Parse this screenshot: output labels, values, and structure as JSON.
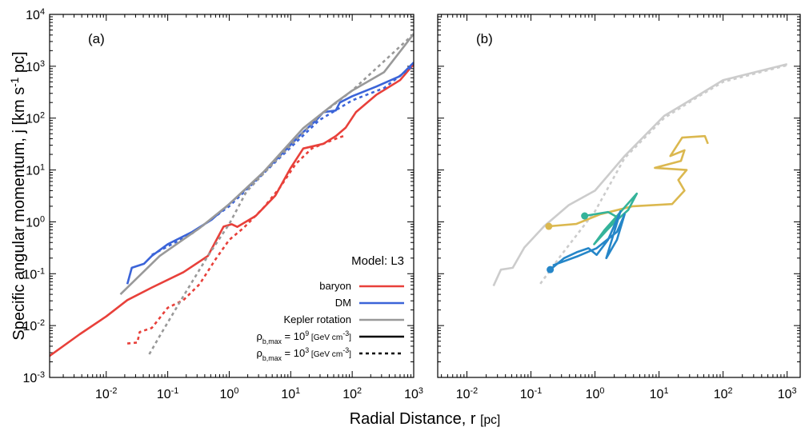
{
  "chart_data": [
    {
      "type": "line",
      "panel_label": "(a)",
      "xscale": "log",
      "yscale": "log",
      "xlabel": [
        "Radial Distance, r ",
        {
          "small": "[pc]"
        }
      ],
      "ylabel": [
        "Specific angular momentum, j [km s",
        {
          "sup": "-1"
        },
        " pc]"
      ],
      "xlim": [
        0.0012,
        1000
      ],
      "ylim": [
        0.001,
        10000
      ],
      "xticks": [
        {
          "value": 0.01,
          "label": [
            "10",
            {
              "sup": "-2"
            }
          ]
        },
        {
          "value": 0.1,
          "label": [
            "10",
            {
              "sup": "-1"
            }
          ]
        },
        {
          "value": 1,
          "label": [
            "10",
            {
              "sup": "0"
            }
          ]
        },
        {
          "value": 10,
          "label": [
            "10",
            {
              "sup": "1"
            }
          ]
        },
        {
          "value": 100,
          "label": [
            "10",
            {
              "sup": "2"
            }
          ]
        },
        {
          "value": 1000,
          "label": [
            "10",
            {
              "sup": "3"
            }
          ]
        }
      ],
      "yticks": [
        {
          "value": 0.001,
          "label": [
            "10",
            {
              "sup": "-3"
            }
          ]
        },
        {
          "value": 0.01,
          "label": [
            "10",
            {
              "sup": "-2"
            }
          ]
        },
        {
          "value": 0.1,
          "label": [
            "10",
            {
              "sup": "-1"
            }
          ]
        },
        {
          "value": 1,
          "label": [
            "10",
            {
              "sup": "0"
            }
          ]
        },
        {
          "value": 10,
          "label": [
            "10",
            {
              "sup": "1"
            }
          ]
        },
        {
          "value": 100,
          "label": [
            "10",
            {
              "sup": "2"
            }
          ]
        },
        {
          "value": 1000,
          "label": [
            "10",
            {
              "sup": "3"
            }
          ]
        },
        {
          "value": 10000,
          "label": [
            "10",
            {
              "sup": "4"
            }
          ]
        }
      ],
      "legend": {
        "title": "Model: L3",
        "corner": "lower right",
        "line_styles": [
          {
            "dashed": false,
            "label": [
              "ρ",
              {
                "sub": "b,max"
              },
              " = 10",
              {
                "sup": "9"
              },
              {
                "small": " [GeV cm"
              },
              {
                "sup": "-3"
              },
              {
                "small": "]"
              }
            ]
          },
          {
            "dashed": true,
            "label": [
              "ρ",
              {
                "sub": "b,max"
              },
              " = 10",
              {
                "sup": "3"
              },
              {
                "small": " [GeV cm"
              },
              {
                "sup": "-3"
              },
              {
                "small": "]"
              }
            ]
          }
        ]
      },
      "series": [
        {
          "name": "baryon",
          "color": "#e8403a",
          "dashed": false,
          "x": [
            0.0012,
            0.0037,
            0.01,
            0.022,
            0.055,
            0.18,
            0.45,
            0.81,
            1.1,
            1.35,
            2.7,
            5.6,
            10,
            16,
            34,
            54,
            78,
            115,
            245,
            600,
            1000
          ],
          "values": [
            0.0026,
            0.0068,
            0.015,
            0.031,
            0.054,
            0.107,
            0.22,
            0.81,
            0.9,
            0.8,
            1.3,
            3.2,
            11,
            26,
            32,
            45,
            65,
            130,
            280,
            540,
            1100
          ]
        },
        {
          "color": "#e8403a",
          "dashed": true,
          "x": [
            0.022,
            0.032,
            0.035,
            0.055,
            0.1,
            0.18,
            0.33,
            0.6,
            1,
            1.7,
            3.6,
            6.6,
            12,
            22,
            54,
            72
          ],
          "values": [
            0.0045,
            0.0047,
            0.0075,
            0.009,
            0.022,
            0.031,
            0.063,
            0.19,
            0.45,
            0.76,
            1.86,
            4.5,
            13,
            26,
            40,
            45
          ]
        },
        {
          "name": "DM",
          "color": "#3b64d8",
          "dashed": false,
          "x": [
            0.022,
            0.026,
            0.041,
            0.055,
            0.1,
            0.25,
            0.52,
            1,
            2.7,
            6.6,
            16,
            26,
            34,
            54,
            63,
            100,
            245,
            600,
            1000
          ],
          "values": [
            0.063,
            0.13,
            0.155,
            0.22,
            0.37,
            0.64,
            1.1,
            2.2,
            6.4,
            18.6,
            54,
            91,
            130,
            140,
            200,
            265,
            405,
            645,
            1180
          ]
        },
        {
          "color": "#3b64d8",
          "dashed": true,
          "x": [
            0.055,
            0.25,
            1,
            6.6,
            29,
            100,
            330,
            1000
          ],
          "values": [
            0.23,
            0.6,
            2.0,
            17,
            91,
            220,
            380,
            1050
          ]
        },
        {
          "name": "Kepler rotation",
          "color": "#999999",
          "dashed": false,
          "x": [
            0.017,
            0.074,
            0.33,
            1,
            3.6,
            16,
            54,
            100,
            330,
            1000
          ],
          "values": [
            0.04,
            0.22,
            0.76,
            2.2,
            9.1,
            64,
            200,
            340,
            770,
            4200
          ]
        },
        {
          "color": "#999999",
          "dashed": true,
          "x": [
            0.05,
            0.074,
            0.18,
            0.45,
            1,
            1.9,
            6.6,
            29,
            100,
            1000
          ],
          "values": [
            0.0028,
            0.0063,
            0.037,
            0.22,
            0.91,
            3.8,
            18,
            110,
            340,
            4200
          ]
        }
      ]
    },
    {
      "type": "line",
      "panel_label": "(b)",
      "xscale": "log",
      "yscale": "log",
      "xlim": [
        0.0035,
        1600
      ],
      "ylim": [
        0.001,
        10000
      ],
      "xticks": [
        {
          "value": 0.01,
          "label": [
            "10",
            {
              "sup": "-2"
            }
          ]
        },
        {
          "value": 0.1,
          "label": [
            "10",
            {
              "sup": "-1"
            }
          ]
        },
        {
          "value": 1,
          "label": [
            "10",
            {
              "sup": "0"
            }
          ]
        },
        {
          "value": 10,
          "label": [
            "10",
            {
              "sup": "1"
            }
          ]
        },
        {
          "value": 100,
          "label": [
            "10",
            {
              "sup": "2"
            }
          ]
        },
        {
          "value": 1000,
          "label": [
            "10",
            {
              "sup": "3"
            }
          ]
        }
      ],
      "yticks": [
        0.001,
        0.01,
        0.1,
        1,
        10,
        100,
        1000,
        10000
      ],
      "series": [
        {
          "color": "#cccccc",
          "dashed": false,
          "x": [
            0.026,
            0.034,
            0.052,
            0.079,
            0.16,
            0.39,
            1,
            2.9,
            12,
            39,
            100,
            1000
          ],
          "values": [
            0.058,
            0.12,
            0.13,
            0.32,
            0.82,
            2.1,
            4,
            18.6,
            110,
            265,
            540,
            1100
          ]
        },
        {
          "color": "#cccccc",
          "dashed": true,
          "x": [
            0.14,
            0.29,
            1,
            2.9,
            12,
            39,
            100,
            1000
          ],
          "values": [
            0.064,
            0.22,
            1.6,
            17,
            100,
            250,
            500,
            1050
          ]
        },
        {
          "color": "#dbb84f",
          "dashed": false,
          "start_marker": true,
          "x": [
            0.19,
            0.51,
            1.2,
            3.9,
            16,
            25,
            20,
            27,
            8.6,
            22,
            25,
            15,
            23,
            52,
            58
          ],
          "values": [
            0.82,
            0.91,
            1.4,
            2.0,
            2.2,
            4.0,
            6.4,
            10,
            11,
            15,
            24,
            18.6,
            42,
            45,
            32
          ]
        },
        {
          "color": "#34b39a",
          "dashed": false,
          "start_marker": true,
          "x": [
            0.69,
            1.6,
            2.3,
            0.97,
            1.4,
            4.5,
            3.3,
            1.9,
            1.15
          ],
          "values": [
            1.3,
            1.55,
            1.2,
            0.37,
            0.69,
            3.5,
            1.7,
            0.91,
            0.48
          ]
        },
        {
          "color": "#2586c8",
          "dashed": false,
          "start_marker": true,
          "x": [
            0.2,
            0.33,
            0.52,
            0.79,
            1.06,
            1.6,
            2.5,
            1.5,
            2.2,
            2.9,
            2.2,
            1.06,
            0.55,
            0.22
          ],
          "values": [
            0.12,
            0.2,
            0.26,
            0.31,
            0.23,
            0.45,
            1.6,
            0.2,
            0.45,
            1.4,
            0.64,
            0.31,
            0.22,
            0.145
          ]
        }
      ]
    }
  ]
}
